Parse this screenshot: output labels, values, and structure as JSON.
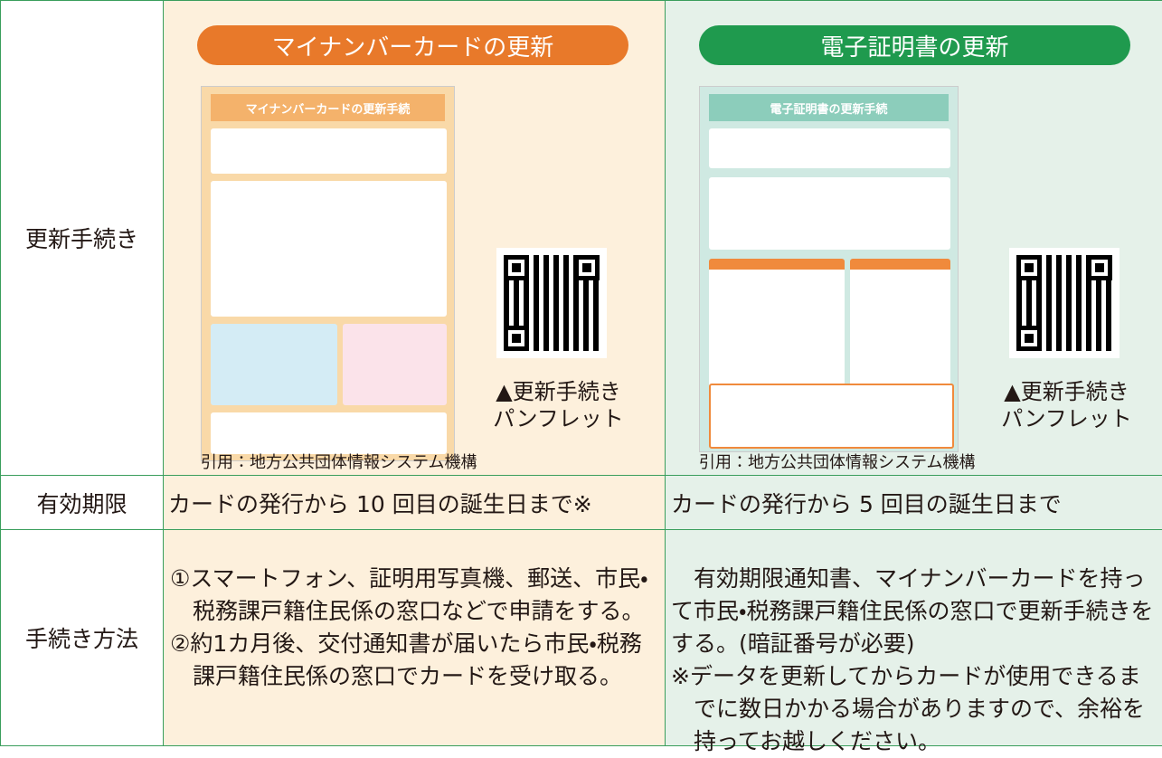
{
  "table": {
    "row_headers": [
      "更新手続き",
      "有効期限",
      "手続き方法"
    ],
    "columns": [
      {
        "title": "マイナンバーカードの更新",
        "pamphlet_title": "マイナンバーカードの更新手続",
        "caption": [
          "▲更新手続き",
          "パンフレット"
        ],
        "citation": "引用：地方公共団体情報システム機構",
        "validity": "カードの発行から 10 回目の誕生日まで※",
        "procedure": [
          "①スマートフォン、証明用写真機、郵送、市民・税務課戸籍住民係の窓口などで申請をする。",
          "②約1カ月後、交付通知書が届いたら市民・税務課戸籍住民係の窓口でカードを受け取る。"
        ]
      },
      {
        "title": "電子証明書の更新",
        "pamphlet_title": "電子証明書の更新手続",
        "caption": [
          "▲更新手続き",
          "パンフレット"
        ],
        "citation": "引用：地方公共団体情報システム機構",
        "validity": "カードの発行から 5 回目の誕生日まで",
        "procedure": [
          "有効期限通知書、マイナンバーカードを持って市民・税務課戸籍住民係の窓口で更新手続きをする。(暗証番号が必要)",
          "※データを更新してからカードが使用できるまでに数日かかる場合がありますので、余裕を持ってお越しください。"
        ]
      }
    ]
  }
}
